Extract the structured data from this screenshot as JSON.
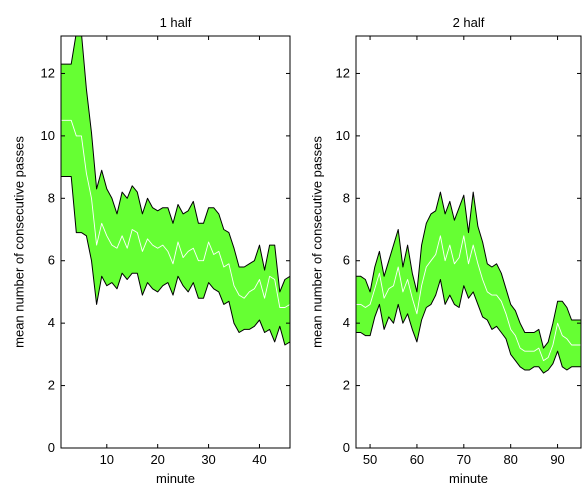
{
  "chart_data": [
    {
      "type": "area",
      "title": "1 half",
      "xlabel": "minute",
      "ylabel": "mean number of consecutive passes",
      "xlim": [
        1,
        46
      ],
      "ylim": [
        0,
        13.2
      ],
      "xticks": [
        10,
        20,
        30,
        40
      ],
      "yticks": [
        0,
        2,
        4,
        6,
        8,
        10,
        12
      ],
      "grid": false,
      "colors": {
        "band": "#66ff33",
        "band_edge": "#000000",
        "mean_line": "#ffffff"
      },
      "x": [
        1,
        2,
        3,
        4,
        5,
        6,
        7,
        8,
        9,
        10,
        11,
        12,
        13,
        14,
        15,
        16,
        17,
        18,
        19,
        20,
        21,
        22,
        23,
        24,
        25,
        26,
        27,
        28,
        29,
        30,
        31,
        32,
        33,
        34,
        35,
        36,
        37,
        38,
        39,
        40,
        41,
        42,
        43,
        44,
        45,
        46
      ],
      "series": [
        {
          "role": "upper",
          "values": [
            12.3,
            12.3,
            12.3,
            13.3,
            13.3,
            11.5,
            10.1,
            8.3,
            8.9,
            8.3,
            8.0,
            7.5,
            8.2,
            8.0,
            8.4,
            8.2,
            7.5,
            8.0,
            7.7,
            7.6,
            7.7,
            7.7,
            7.2,
            7.8,
            7.5,
            7.6,
            7.9,
            7.2,
            7.2,
            7.7,
            7.7,
            7.5,
            7.0,
            6.9,
            6.4,
            5.8,
            5.8,
            5.9,
            6.0,
            6.5,
            5.7,
            6.5,
            6.5,
            5.0,
            5.4,
            5.5
          ]
        },
        {
          "role": "mean",
          "values": [
            10.5,
            10.5,
            10.5,
            10.0,
            10.0,
            8.8,
            8.0,
            6.5,
            7.2,
            6.8,
            6.5,
            6.4,
            6.8,
            6.4,
            7.0,
            6.9,
            6.3,
            6.7,
            6.5,
            6.4,
            6.5,
            6.3,
            5.9,
            6.6,
            6.1,
            6.3,
            6.4,
            6.0,
            6.0,
            6.6,
            6.2,
            6.3,
            5.8,
            5.9,
            5.2,
            4.9,
            4.8,
            5.0,
            5.1,
            5.4,
            4.8,
            5.5,
            5.4,
            4.5,
            4.5,
            4.6
          ]
        },
        {
          "role": "lower",
          "values": [
            8.7,
            8.7,
            8.7,
            6.9,
            6.9,
            6.8,
            6.0,
            4.6,
            5.5,
            5.2,
            5.3,
            5.1,
            5.6,
            5.4,
            5.6,
            5.6,
            4.9,
            5.3,
            5.1,
            5.0,
            5.2,
            5.3,
            4.9,
            5.5,
            5.2,
            5.0,
            5.3,
            4.8,
            4.8,
            5.3,
            5.1,
            5.0,
            4.6,
            4.7,
            4.0,
            3.7,
            3.8,
            3.8,
            3.9,
            4.1,
            3.7,
            3.8,
            3.4,
            3.9,
            3.3,
            3.4
          ]
        }
      ]
    },
    {
      "type": "area",
      "title": "2 half",
      "xlabel": "minute",
      "ylabel": "mean number of consecutive passes",
      "xlim": [
        47,
        95
      ],
      "ylim": [
        0,
        13.2
      ],
      "xticks": [
        50,
        60,
        70,
        80,
        90
      ],
      "yticks": [
        0,
        2,
        4,
        6,
        8,
        10,
        12
      ],
      "grid": false,
      "colors": {
        "band": "#66ff33",
        "band_edge": "#000000",
        "mean_line": "#ffffff"
      },
      "x": [
        47,
        48,
        49,
        50,
        51,
        52,
        53,
        54,
        55,
        56,
        57,
        58,
        59,
        60,
        61,
        62,
        63,
        64,
        65,
        66,
        67,
        68,
        69,
        70,
        71,
        72,
        73,
        74,
        75,
        76,
        77,
        78,
        79,
        80,
        81,
        82,
        83,
        84,
        85,
        86,
        87,
        88,
        89,
        90,
        91,
        92,
        93,
        94,
        95
      ],
      "series": [
        {
          "role": "upper",
          "values": [
            5.5,
            5.5,
            5.4,
            5.0,
            5.8,
            6.3,
            5.5,
            6.0,
            6.5,
            7.0,
            5.8,
            6.5,
            5.6,
            5.0,
            6.5,
            7.2,
            7.5,
            7.6,
            8.2,
            7.5,
            7.9,
            7.3,
            7.7,
            8.1,
            6.9,
            8.2,
            7.1,
            6.6,
            5.9,
            5.8,
            5.9,
            5.6,
            5.1,
            4.6,
            4.4,
            4.0,
            3.7,
            3.7,
            3.7,
            3.8,
            3.2,
            3.4,
            4.0,
            4.7,
            4.7,
            4.5,
            4.1,
            4.1,
            4.1
          ]
        },
        {
          "role": "mean",
          "values": [
            4.6,
            4.6,
            4.5,
            4.6,
            5.1,
            5.6,
            4.8,
            5.1,
            5.2,
            5.8,
            5.0,
            5.4,
            4.8,
            4.3,
            5.2,
            5.8,
            6.0,
            6.2,
            6.8,
            6.0,
            6.5,
            5.9,
            6.1,
            6.8,
            5.9,
            6.5,
            5.9,
            5.4,
            5.0,
            4.9,
            4.9,
            4.7,
            4.3,
            3.8,
            3.6,
            3.2,
            3.1,
            3.1,
            3.1,
            3.2,
            2.8,
            2.9,
            3.3,
            4.0,
            3.6,
            3.5,
            3.3,
            3.3,
            3.3
          ]
        },
        {
          "role": "lower",
          "values": [
            3.7,
            3.7,
            3.6,
            3.6,
            4.2,
            4.6,
            3.8,
            4.2,
            4.0,
            4.6,
            4.0,
            4.3,
            3.8,
            3.4,
            4.1,
            4.5,
            4.6,
            4.9,
            5.4,
            4.6,
            4.9,
            4.6,
            4.5,
            5.2,
            4.8,
            5.0,
            4.6,
            4.2,
            4.1,
            3.8,
            3.9,
            3.7,
            3.5,
            3.0,
            2.8,
            2.6,
            2.5,
            2.5,
            2.6,
            2.6,
            2.4,
            2.5,
            2.7,
            3.1,
            2.6,
            2.5,
            2.6,
            2.6,
            2.6
          ]
        }
      ]
    }
  ]
}
